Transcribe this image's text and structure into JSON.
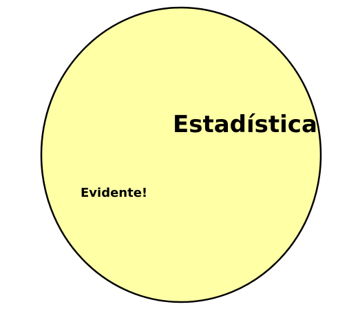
{
  "diagram": {
    "main_label": "Estadística",
    "sub_label": "Evidente!",
    "circle_fill": "#FFFFA6",
    "circle_stroke": "#000000"
  }
}
